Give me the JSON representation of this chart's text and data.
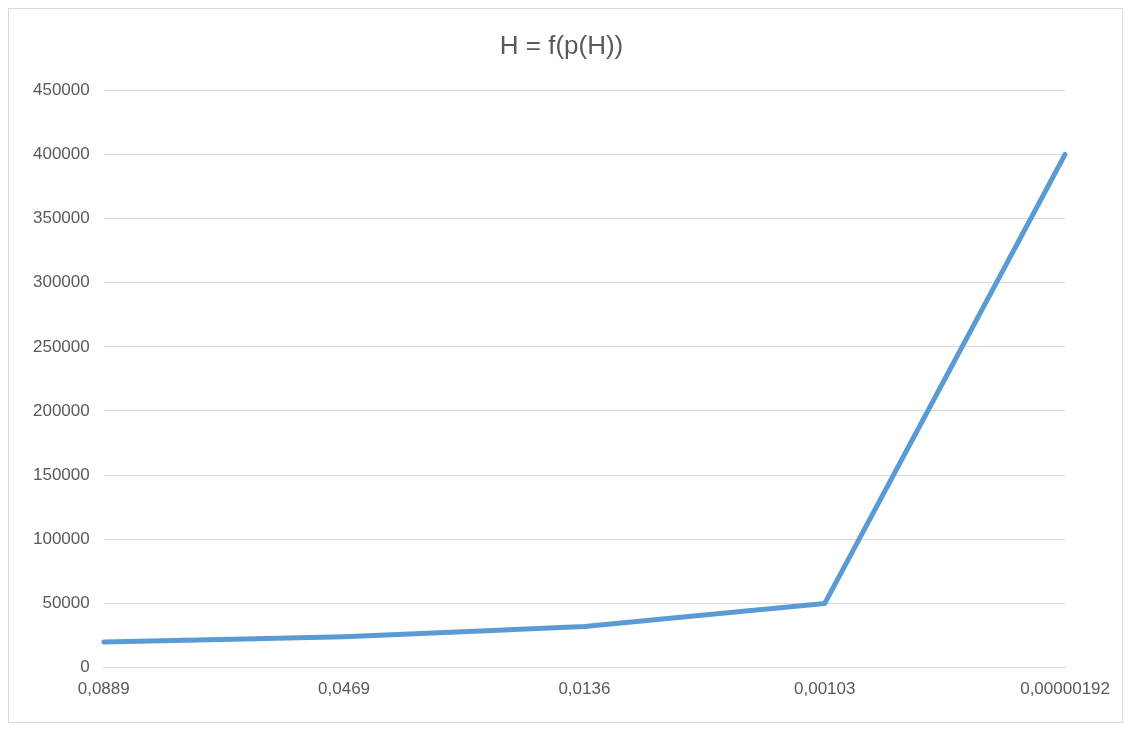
{
  "chart_data": {
    "type": "line",
    "title": "H = f(p(H))",
    "categories": [
      "0,0889",
      "0,0469",
      "0,0136",
      "0,00103",
      "0,00000192"
    ],
    "series": [
      {
        "color": "#5b9bd5",
        "values": [
          20000,
          24000,
          32000,
          50000,
          400000
        ]
      }
    ],
    "ylim": [
      0,
      450000
    ],
    "yticks": [
      0,
      50000,
      100000,
      150000,
      200000,
      250000,
      300000,
      350000,
      400000,
      450000
    ],
    "grid": "y",
    "legend": false,
    "marker": "none",
    "line_style": "solid"
  }
}
